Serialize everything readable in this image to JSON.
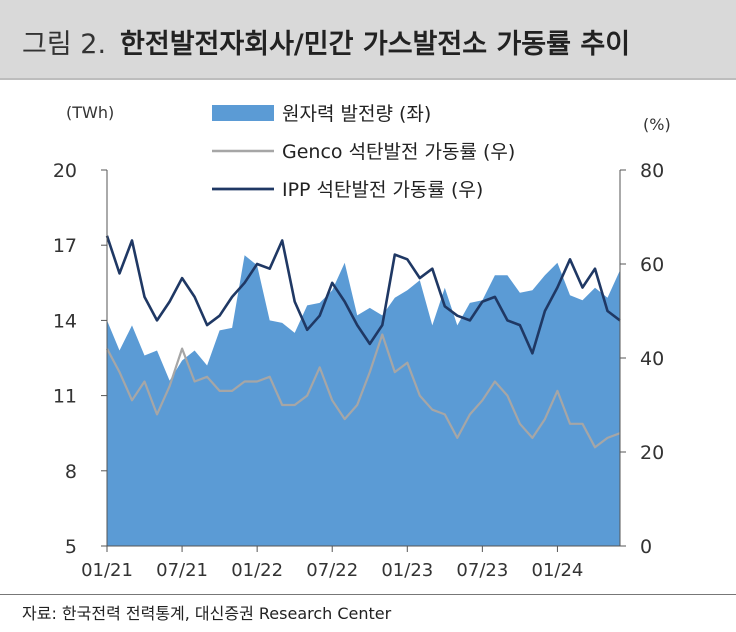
{
  "figure": {
    "number_label": "그림 2.",
    "title": "한전발전자회사/민간 가스발전소 가동률 추이"
  },
  "source": "자료: 한국전력 전력통계, 대신증권 Research Center",
  "chart_data": {
    "type": "area+line",
    "left_unit": "(TWh)",
    "right_unit": "(%)",
    "left_ylim": [
      5,
      20
    ],
    "left_ticks": [
      "20",
      "17",
      "14",
      "11",
      "8",
      "5"
    ],
    "right_ylim": [
      0,
      80
    ],
    "right_ticks": [
      "80",
      "60",
      "40",
      "20",
      "0"
    ],
    "x_tick_labels": [
      "01/21",
      "07/21",
      "01/22",
      "07/22",
      "01/23",
      "07/23",
      "01/24"
    ],
    "legend": [
      {
        "label": "원자력 발전량 (좌)",
        "color": "#5b9bd5",
        "kind": "area"
      },
      {
        "label": "Genco 석탄발전 가동률 (우)",
        "color": "#a6a6a6",
        "kind": "line"
      },
      {
        "label": "IPP 석탄발전 가동률 (우)",
        "color": "#1f3864",
        "kind": "line"
      }
    ],
    "series": [
      {
        "name": "원자력 발전량 (좌)",
        "axis": "left",
        "values": [
          14.0,
          12.8,
          13.8,
          12.6,
          12.8,
          11.6,
          12.4,
          12.8,
          12.2,
          13.6,
          13.7,
          16.6,
          16.2,
          14.0,
          13.9,
          13.5,
          14.6,
          14.7,
          15.2,
          16.3,
          14.2,
          14.5,
          14.2,
          14.9,
          15.2,
          15.6,
          13.8,
          15.3,
          13.8,
          14.7,
          14.8,
          15.8,
          15.8,
          15.1,
          15.2,
          15.8,
          16.3,
          15.0,
          14.8,
          15.3,
          14.9,
          16.0
        ]
      },
      {
        "name": "Genco 석탄발전 가동률 (우)",
        "axis": "right",
        "values": [
          42,
          37,
          31,
          35,
          28,
          34,
          42,
          35,
          36,
          33,
          33,
          35,
          35,
          36,
          30,
          30,
          32,
          38,
          31,
          27,
          30,
          37,
          45,
          37,
          39,
          32,
          29,
          28,
          23,
          28,
          31,
          35,
          32,
          26,
          23,
          27,
          33,
          26,
          26,
          21,
          23,
          24
        ]
      },
      {
        "name": "IPP 석탄발전 가동률 (우)",
        "axis": "right",
        "values": [
          66,
          58,
          65,
          53,
          48,
          52,
          57,
          53,
          47,
          49,
          53,
          56,
          60,
          59,
          65,
          52,
          46,
          49,
          56,
          52,
          47,
          43,
          47,
          62,
          61,
          57,
          59,
          51,
          49,
          48,
          52,
          53,
          48,
          47,
          41,
          50,
          55,
          61,
          55,
          59,
          50,
          48
        ]
      }
    ]
  }
}
